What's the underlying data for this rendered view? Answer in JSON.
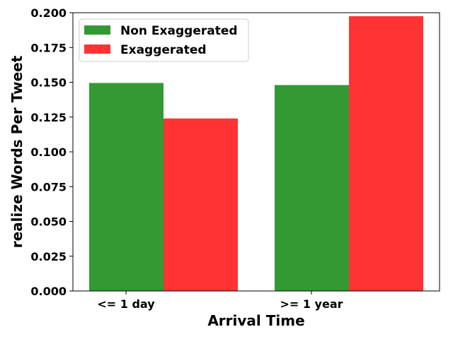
{
  "chart_data": {
    "type": "bar",
    "categories": [
      "<= 1 day",
      ">= 1 year"
    ],
    "series": [
      {
        "name": "Non Exaggerated",
        "values": [
          0.1495,
          0.148
        ],
        "color": "#339933"
      },
      {
        "name": "Exaggerated",
        "values": [
          0.124,
          0.1975
        ],
        "color": "#ff3333"
      }
    ],
    "title": "",
    "xlabel": "Arrival Time",
    "ylabel": "realize Words Per Tweet",
    "ylim": [
      0,
      0.2
    ],
    "yticks": [
      "0.000",
      "0.025",
      "0.050",
      "0.075",
      "0.100",
      "0.125",
      "0.150",
      "0.175",
      "0.200"
    ],
    "grid": false,
    "legend_position": "upper-left"
  }
}
